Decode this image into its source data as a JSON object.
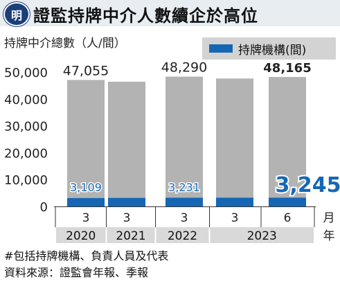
{
  "header": {
    "logo_text": "明",
    "title": "證監持牌中介人數續企於高位"
  },
  "subtitle": "持牌中介總數（人/間）",
  "legend": {
    "label": "持牌機構(間)"
  },
  "footnotes": [
    "#包括持牌機構、負責人員及代表",
    "資料來源：證監會年報、季報"
  ],
  "colors": {
    "total": "#b3b3b3",
    "firms": "#1567b5",
    "header_bg": "#e8edf2",
    "logo": "#1c3f7a"
  },
  "chart_data": {
    "type": "bar",
    "categories": [
      "2020-3",
      "2021-3",
      "2022-3",
      "2023-3",
      "2023-6"
    ],
    "x_month_labels": [
      "3",
      "3",
      "3",
      "3",
      "6"
    ],
    "x_year_groups": [
      {
        "label": "2020",
        "span": [
          0,
          0
        ]
      },
      {
        "label": "2021",
        "span": [
          1,
          1
        ]
      },
      {
        "label": "2022",
        "span": [
          2,
          2
        ]
      },
      {
        "label": "2023",
        "span": [
          3,
          4
        ]
      }
    ],
    "x_unit_month": "月",
    "x_unit_year": "年",
    "series": [
      {
        "values": [
          47055,
          46400,
          48290,
          47600,
          48165
        ],
        "labels": [
          "47,055",
          "",
          "48,290",
          "",
          "48,165"
        ]
      },
      {
        "name": "持牌機構(間)",
        "values": [
          3109,
          3170,
          3231,
          3240,
          3245
        ],
        "labels": [
          "3,109",
          "",
          "3,231",
          "",
          "3,245"
        ]
      }
    ],
    "yticks": [
      "0",
      "10,000",
      "20,000",
      "30,000",
      "40,000",
      "50,000"
    ],
    "ylim": [
      0,
      50000
    ],
    "stacked_overlay": true,
    "grid": false
  }
}
